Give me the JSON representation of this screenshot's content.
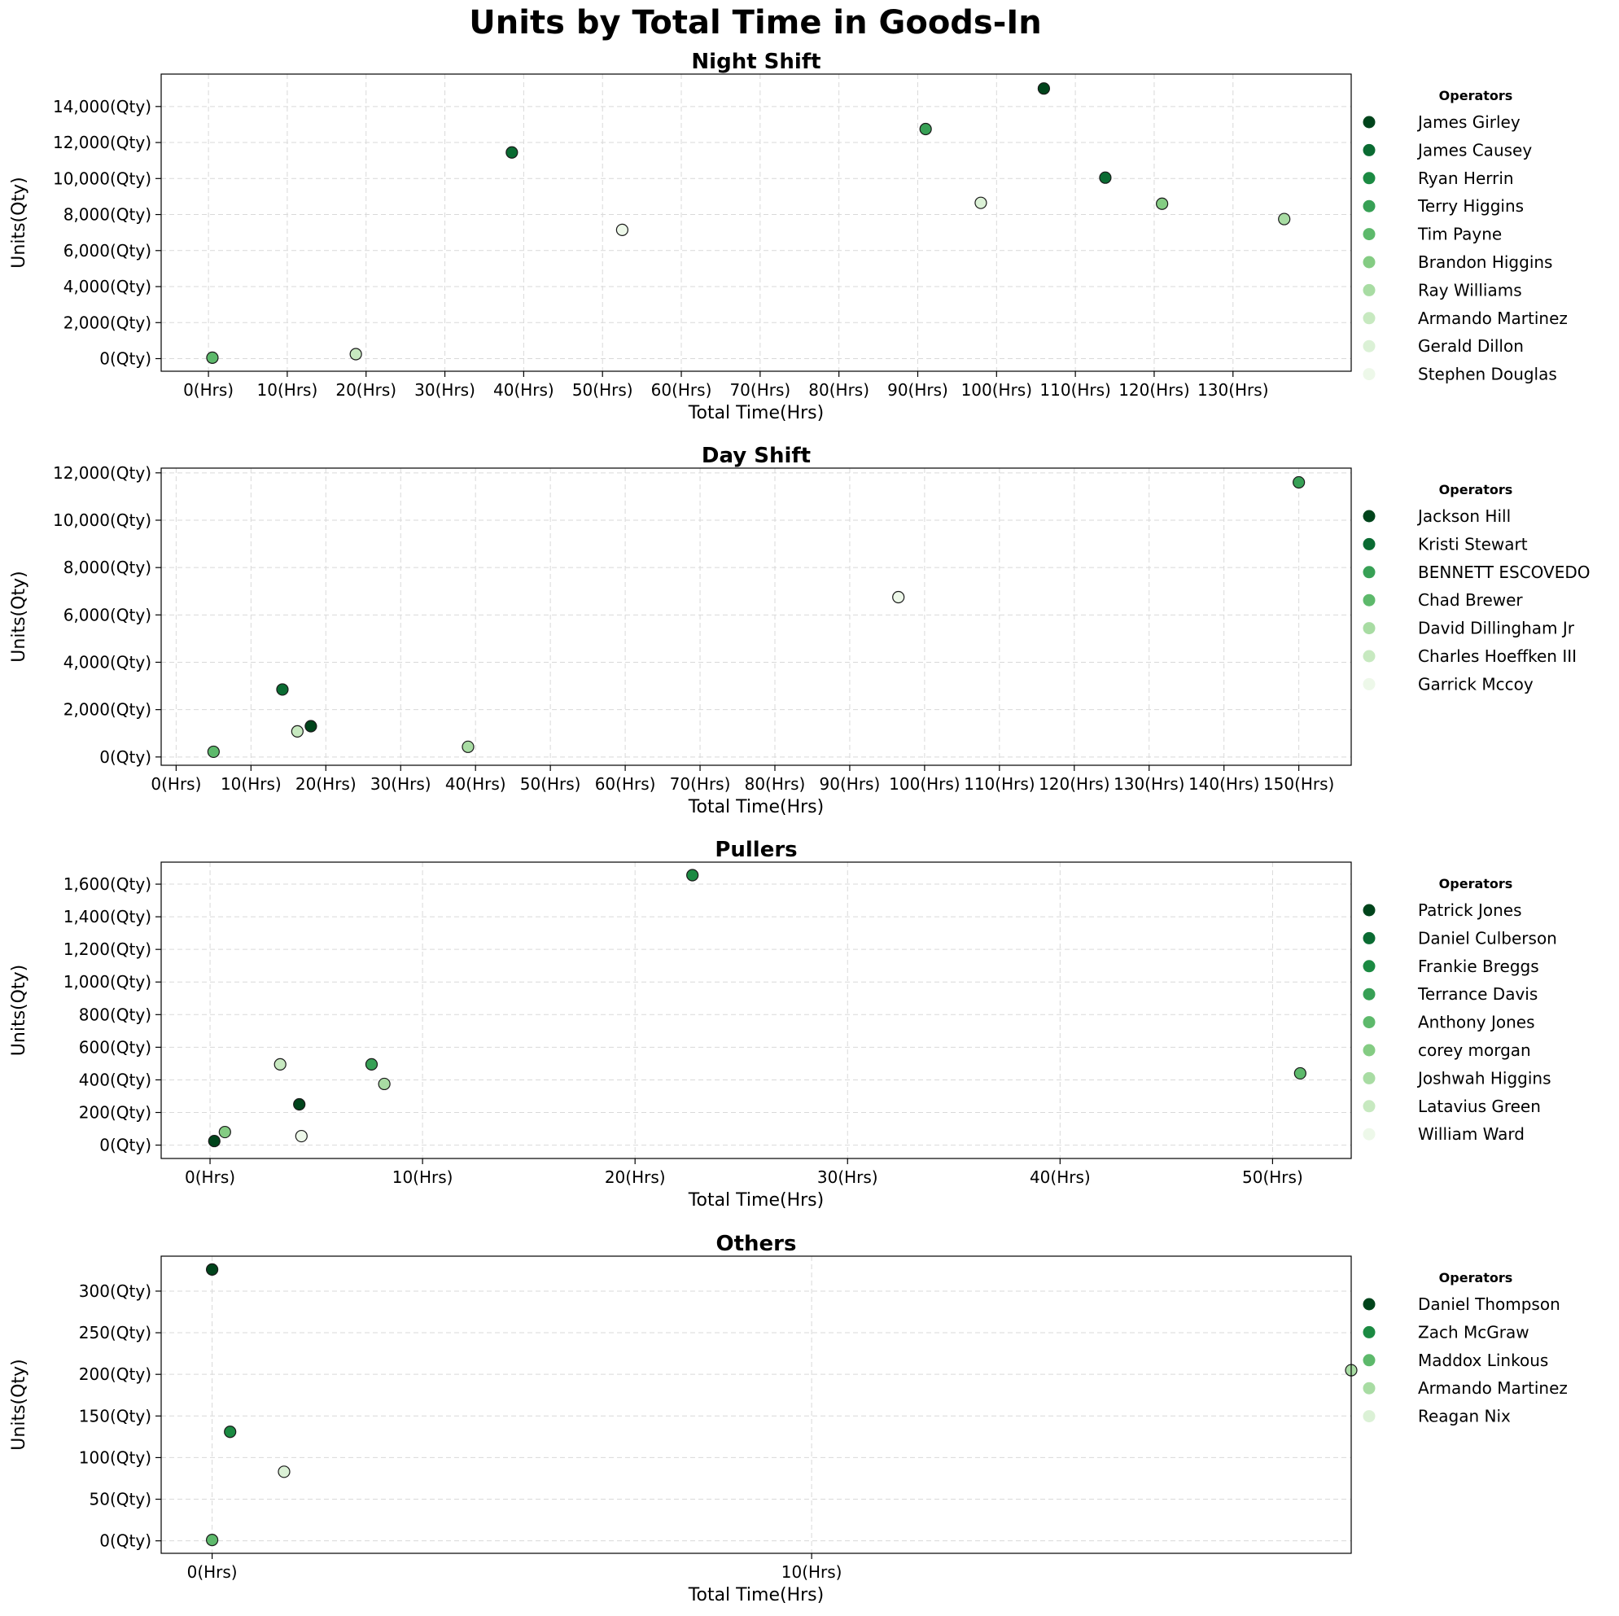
{
  "title": "Units by Total Time in Goods-In",
  "colors": {
    "palette": [
      "#00441b",
      "#0a6b32",
      "#1b8a42",
      "#37a055",
      "#5db96b",
      "#84cc83",
      "#a8dca3",
      "#c7e9c0",
      "#dbf1d6",
      "#edf8e9"
    ],
    "edge": "#1a1a1a",
    "grid": "#d9d9d9"
  },
  "chart_data": [
    {
      "type": "scatter",
      "title": "Night Shift",
      "xlabel": "Total Time(Hrs)",
      "ylabel": "Units(Qty)",
      "xlim": [
        -6,
        145
      ],
      "ylim": [
        -700,
        15800
      ],
      "xticks": [
        0,
        10,
        20,
        30,
        40,
        50,
        60,
        70,
        80,
        90,
        100,
        110,
        120,
        130
      ],
      "xtick_labels": [
        "0(Hrs)",
        "10(Hrs)",
        "20(Hrs)",
        "30(Hrs)",
        "40(Hrs)",
        "50(Hrs)",
        "60(Hrs)",
        "70(Hrs)",
        "80(Hrs)",
        "90(Hrs)",
        "100(Hrs)",
        "110(Hrs)",
        "120(Hrs)",
        "130(Hrs)"
      ],
      "yticks": [
        0,
        2000,
        4000,
        6000,
        8000,
        10000,
        12000,
        14000
      ],
      "ytick_labels": [
        "0(Qty)",
        "2,000(Qty)",
        "4,000(Qty)",
        "6,000(Qty)",
        "8,000(Qty)",
        "10,000(Qty)",
        "12,000(Qty)",
        "14,000(Qty)"
      ],
      "grid": true,
      "legend_title": "Operators",
      "legend_position": "right",
      "series": [
        {
          "name": "James Girley",
          "color": "#00441b",
          "points": [
            [
              106,
              15000
            ]
          ]
        },
        {
          "name": "James Causey",
          "color": "#0a6b32",
          "points": [
            [
              38.5,
              11450
            ],
            [
              113.8,
              10050
            ]
          ]
        },
        {
          "name": "Ryan Herrin",
          "color": "#1b8a42",
          "points": []
        },
        {
          "name": "Terry Higgins",
          "color": "#37a055",
          "points": [
            [
              91,
              12750
            ]
          ]
        },
        {
          "name": "Tim Payne",
          "color": "#5db96b",
          "points": [
            [
              0.5,
              50
            ]
          ]
        },
        {
          "name": "Brandon Higgins",
          "color": "#84cc83",
          "points": [
            [
              121,
              8600
            ]
          ]
        },
        {
          "name": "Ray Williams",
          "color": "#a8dca3",
          "points": [
            [
              136.5,
              7750
            ]
          ]
        },
        {
          "name": "Armando Martinez",
          "color": "#c7e9c0",
          "points": [
            [
              18.7,
              250
            ]
          ]
        },
        {
          "name": "Gerald Dillon",
          "color": "#dbf1d6",
          "points": [
            [
              98,
              8650
            ]
          ]
        },
        {
          "name": "Stephen Douglas",
          "color": "#edf8e9",
          "points": [
            [
              52.5,
              7150
            ]
          ]
        }
      ]
    },
    {
      "type": "scatter",
      "title": "Day Shift",
      "xlabel": "Total Time(Hrs)",
      "ylabel": "Units(Qty)",
      "xlim": [
        -2,
        157
      ],
      "ylim": [
        -350,
        12200
      ],
      "xticks": [
        0,
        10,
        20,
        30,
        40,
        50,
        60,
        70,
        80,
        90,
        100,
        110,
        120,
        130,
        140,
        150
      ],
      "xtick_labels": [
        "0(Hrs)",
        "10(Hrs)",
        "20(Hrs)",
        "30(Hrs)",
        "40(Hrs)",
        "50(Hrs)",
        "60(Hrs)",
        "70(Hrs)",
        "80(Hrs)",
        "90(Hrs)",
        "100(Hrs)",
        "110(Hrs)",
        "120(Hrs)",
        "130(Hrs)",
        "140(Hrs)",
        "150(Hrs)"
      ],
      "yticks": [
        0,
        2000,
        4000,
        6000,
        8000,
        10000,
        12000
      ],
      "ytick_labels": [
        "0(Qty)",
        "2,000(Qty)",
        "4,000(Qty)",
        "6,000(Qty)",
        "8,000(Qty)",
        "10,000(Qty)",
        "12,000(Qty)"
      ],
      "grid": true,
      "legend_title": "Operators",
      "legend_position": "right",
      "series": [
        {
          "name": "Jackson Hill",
          "color": "#00441b",
          "points": [
            [
              18,
              1300
            ]
          ]
        },
        {
          "name": "Kristi Stewart",
          "color": "#0a6b32",
          "points": [
            [
              14.2,
              2850
            ]
          ]
        },
        {
          "name": "BENNETT ESCOVEDO",
          "color": "#37a055",
          "points": [
            [
              150,
              11600
            ]
          ]
        },
        {
          "name": "Chad Brewer",
          "color": "#5db96b",
          "points": [
            [
              5,
              220
            ]
          ]
        },
        {
          "name": "David Dillingham Jr",
          "color": "#a8dca3",
          "points": [
            [
              39,
              430
            ]
          ]
        },
        {
          "name": "Charles Hoeffken III",
          "color": "#c7e9c0",
          "points": [
            [
              16.2,
              1080
            ]
          ]
        },
        {
          "name": "Garrick Mccoy",
          "color": "#edf8e9",
          "points": [
            [
              96.5,
              6750
            ]
          ]
        }
      ]
    },
    {
      "type": "scatter",
      "title": "Pullers",
      "xlabel": "Total Time(Hrs)",
      "ylabel": "Units(Qty)",
      "xlim": [
        -2.3,
        53.7
      ],
      "ylim": [
        -82,
        1735
      ],
      "xticks": [
        0,
        10,
        20,
        30,
        40,
        50
      ],
      "xtick_labels": [
        "0(Hrs)",
        "10(Hrs)",
        "20(Hrs)",
        "30(Hrs)",
        "40(Hrs)",
        "50(Hrs)"
      ],
      "yticks": [
        0,
        200,
        400,
        600,
        800,
        1000,
        1200,
        1400,
        1600
      ],
      "ytick_labels": [
        "0(Qty)",
        "200(Qty)",
        "400(Qty)",
        "600(Qty)",
        "800(Qty)",
        "1,000(Qty)",
        "1,200(Qty)",
        "1,400(Qty)",
        "1,600(Qty)"
      ],
      "grid": true,
      "legend_title": "Operators",
      "legend_position": "right",
      "series": [
        {
          "name": "Patrick Jones",
          "color": "#00441b",
          "points": [
            [
              0.2,
              25
            ],
            [
              4.2,
              250
            ]
          ]
        },
        {
          "name": "Daniel Culberson",
          "color": "#0a6b32",
          "points": []
        },
        {
          "name": "Frankie Breggs",
          "color": "#1b8a42",
          "points": [
            [
              22.7,
              1655
            ]
          ]
        },
        {
          "name": "Terrance Davis",
          "color": "#37a055",
          "points": [
            [
              7.6,
              495
            ]
          ]
        },
        {
          "name": "Anthony Jones",
          "color": "#5db96b",
          "points": [
            [
              51.3,
              440
            ]
          ]
        },
        {
          "name": "corey morgan",
          "color": "#84cc83",
          "points": [
            [
              0.7,
              80
            ]
          ]
        },
        {
          "name": "Joshwah Higgins",
          "color": "#a8dca3",
          "points": [
            [
              8.2,
              375
            ]
          ]
        },
        {
          "name": "Latavius Green",
          "color": "#c7e9c0",
          "points": [
            [
              3.3,
              495
            ]
          ]
        },
        {
          "name": "William Ward",
          "color": "#edf8e9",
          "points": [
            [
              4.3,
              55
            ]
          ]
        }
      ]
    },
    {
      "type": "scatter",
      "title": "Others",
      "xlabel": "Total Time(Hrs)",
      "ylabel": "Units(Qty)",
      "xlim": [
        -0.85,
        19.0
      ],
      "ylim": [
        -15,
        342
      ],
      "xticks": [
        0,
        10
      ],
      "xtick_labels": [
        "0(Hrs)",
        "10(Hrs)"
      ],
      "yticks": [
        0,
        50,
        100,
        150,
        200,
        250,
        300
      ],
      "ytick_labels": [
        "0(Qty)",
        "50(Qty)",
        "100(Qty)",
        "150(Qty)",
        "200(Qty)",
        "250(Qty)",
        "300(Qty)"
      ],
      "grid": true,
      "legend_title": "Operators",
      "legend_position": "right",
      "series": [
        {
          "name": "Daniel Thompson",
          "color": "#00441b",
          "points": [
            [
              0,
              326
            ]
          ]
        },
        {
          "name": "Zach McGraw",
          "color": "#1b8a42",
          "points": [
            [
              0.3,
              131
            ]
          ]
        },
        {
          "name": "Maddox Linkous",
          "color": "#5db96b",
          "points": [
            [
              0,
              1
            ]
          ]
        },
        {
          "name": "Armando Martinez",
          "color": "#a8dca3",
          "points": [
            [
              19,
              205
            ]
          ]
        },
        {
          "name": "Reagan Nix",
          "color": "#dbf1d6",
          "points": [
            [
              1.2,
              83
            ]
          ]
        }
      ]
    }
  ]
}
